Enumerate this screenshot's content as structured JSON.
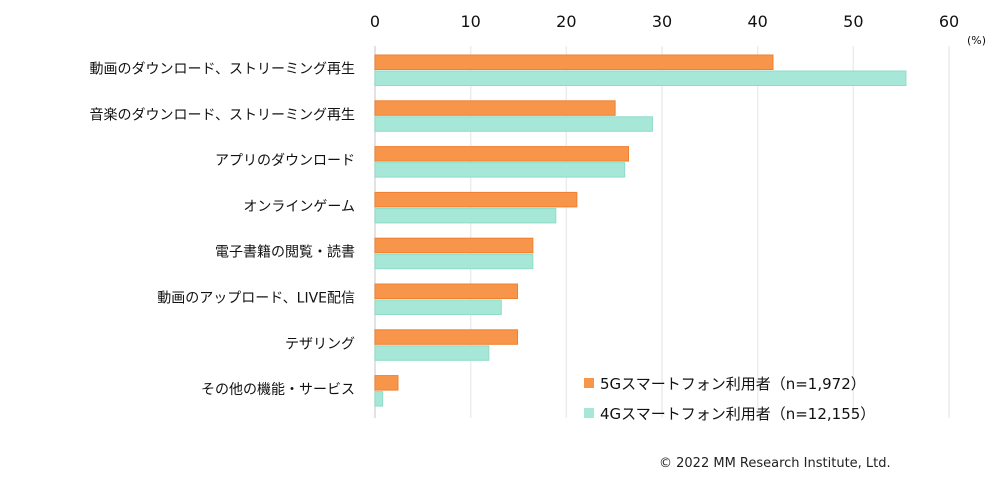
{
  "chart_data": {
    "type": "bar",
    "orientation": "horizontal",
    "title": "",
    "xlabel": "",
    "ylabel": "",
    "unit_label": "(%)",
    "xlim": [
      0,
      60
    ],
    "xticks": [
      0,
      10,
      20,
      30,
      40,
      50,
      60
    ],
    "grid": true,
    "categories": [
      "動画のダウンロード、ストリーミング再生",
      "音楽のダウンロード、ストリーミング再生",
      "アプリのダウンロード",
      "オンラインゲーム",
      "電子書籍の閲覧・読書",
      "動画のアップロード、LIVE配信",
      "テザリング",
      "その他の機能・サービス"
    ],
    "series": [
      {
        "name": "5Gスマートフォン利用者（n=1,972）",
        "color": "#f7964a",
        "values": [
          41.6,
          25.1,
          26.5,
          21.1,
          16.5,
          14.9,
          14.9,
          2.4
        ]
      },
      {
        "name": "4Gスマートフォン利用者（n=12,155）",
        "color": "#a6e7d8",
        "values": [
          55.5,
          29.0,
          26.1,
          18.9,
          16.5,
          13.2,
          11.9,
          0.8
        ]
      }
    ],
    "legend_position": "bottom-right",
    "annotations": [
      "© 2022 MM Research Institute, Ltd."
    ]
  }
}
